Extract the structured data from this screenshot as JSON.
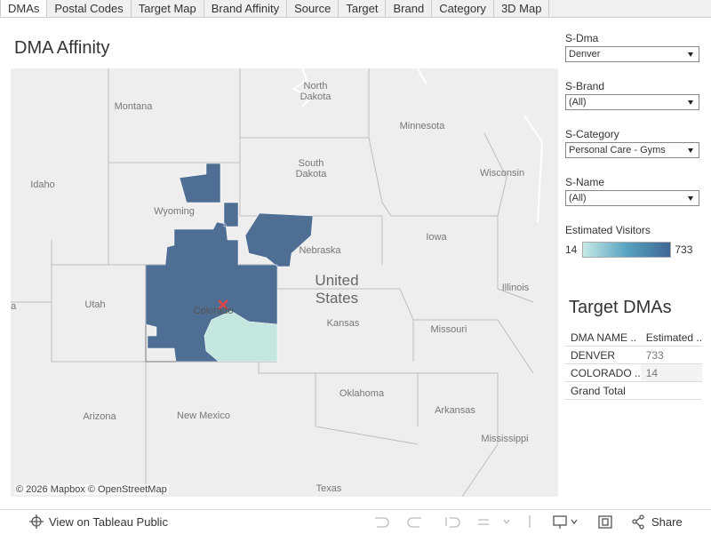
{
  "tabs": [
    "DMAs",
    "Postal Codes",
    "Target Map",
    "Brand Affinity",
    "Source",
    "Target",
    "Brand",
    "Category",
    "3D Map"
  ],
  "title": "DMA Affinity",
  "map": {
    "labels": [
      "Montana",
      "North Dakota",
      "Minnesota",
      "South Dakota",
      "Wisconsin",
      "Idaho",
      "Wyoming",
      "Nebraska",
      "Iowa",
      "United States",
      "Illinois",
      "Utah",
      "la",
      "Colorado",
      "Kansas",
      "Missouri",
      "Arizona",
      "New Mexico",
      "Oklahoma",
      "Arkansas",
      "Mississippi",
      "Texas"
    ],
    "attribution": "© 2026 Mapbox  © OpenStreetMap"
  },
  "filters": [
    {
      "label": "S-Dma",
      "value": "Denver"
    },
    {
      "label": "S-Brand",
      "value": "(All)"
    },
    {
      "label": "S-Category",
      "value": "Personal Care - Gyms"
    },
    {
      "label": "S-Name",
      "value": "(All)"
    }
  ],
  "legend": {
    "title": "Estimated Visitors",
    "min": 14,
    "max": 733
  },
  "table": {
    "title": "Target DMAs",
    "header": [
      "DMA NAME ..",
      "Estimated .."
    ],
    "rows": [
      {
        "name": "DENVER",
        "value": 733
      },
      {
        "name": "COLORADO ..",
        "value": 14
      },
      {
        "name": "Grand Total"
      }
    ]
  },
  "footer": {
    "view": "View on Tableau Public",
    "share": "Share"
  }
}
